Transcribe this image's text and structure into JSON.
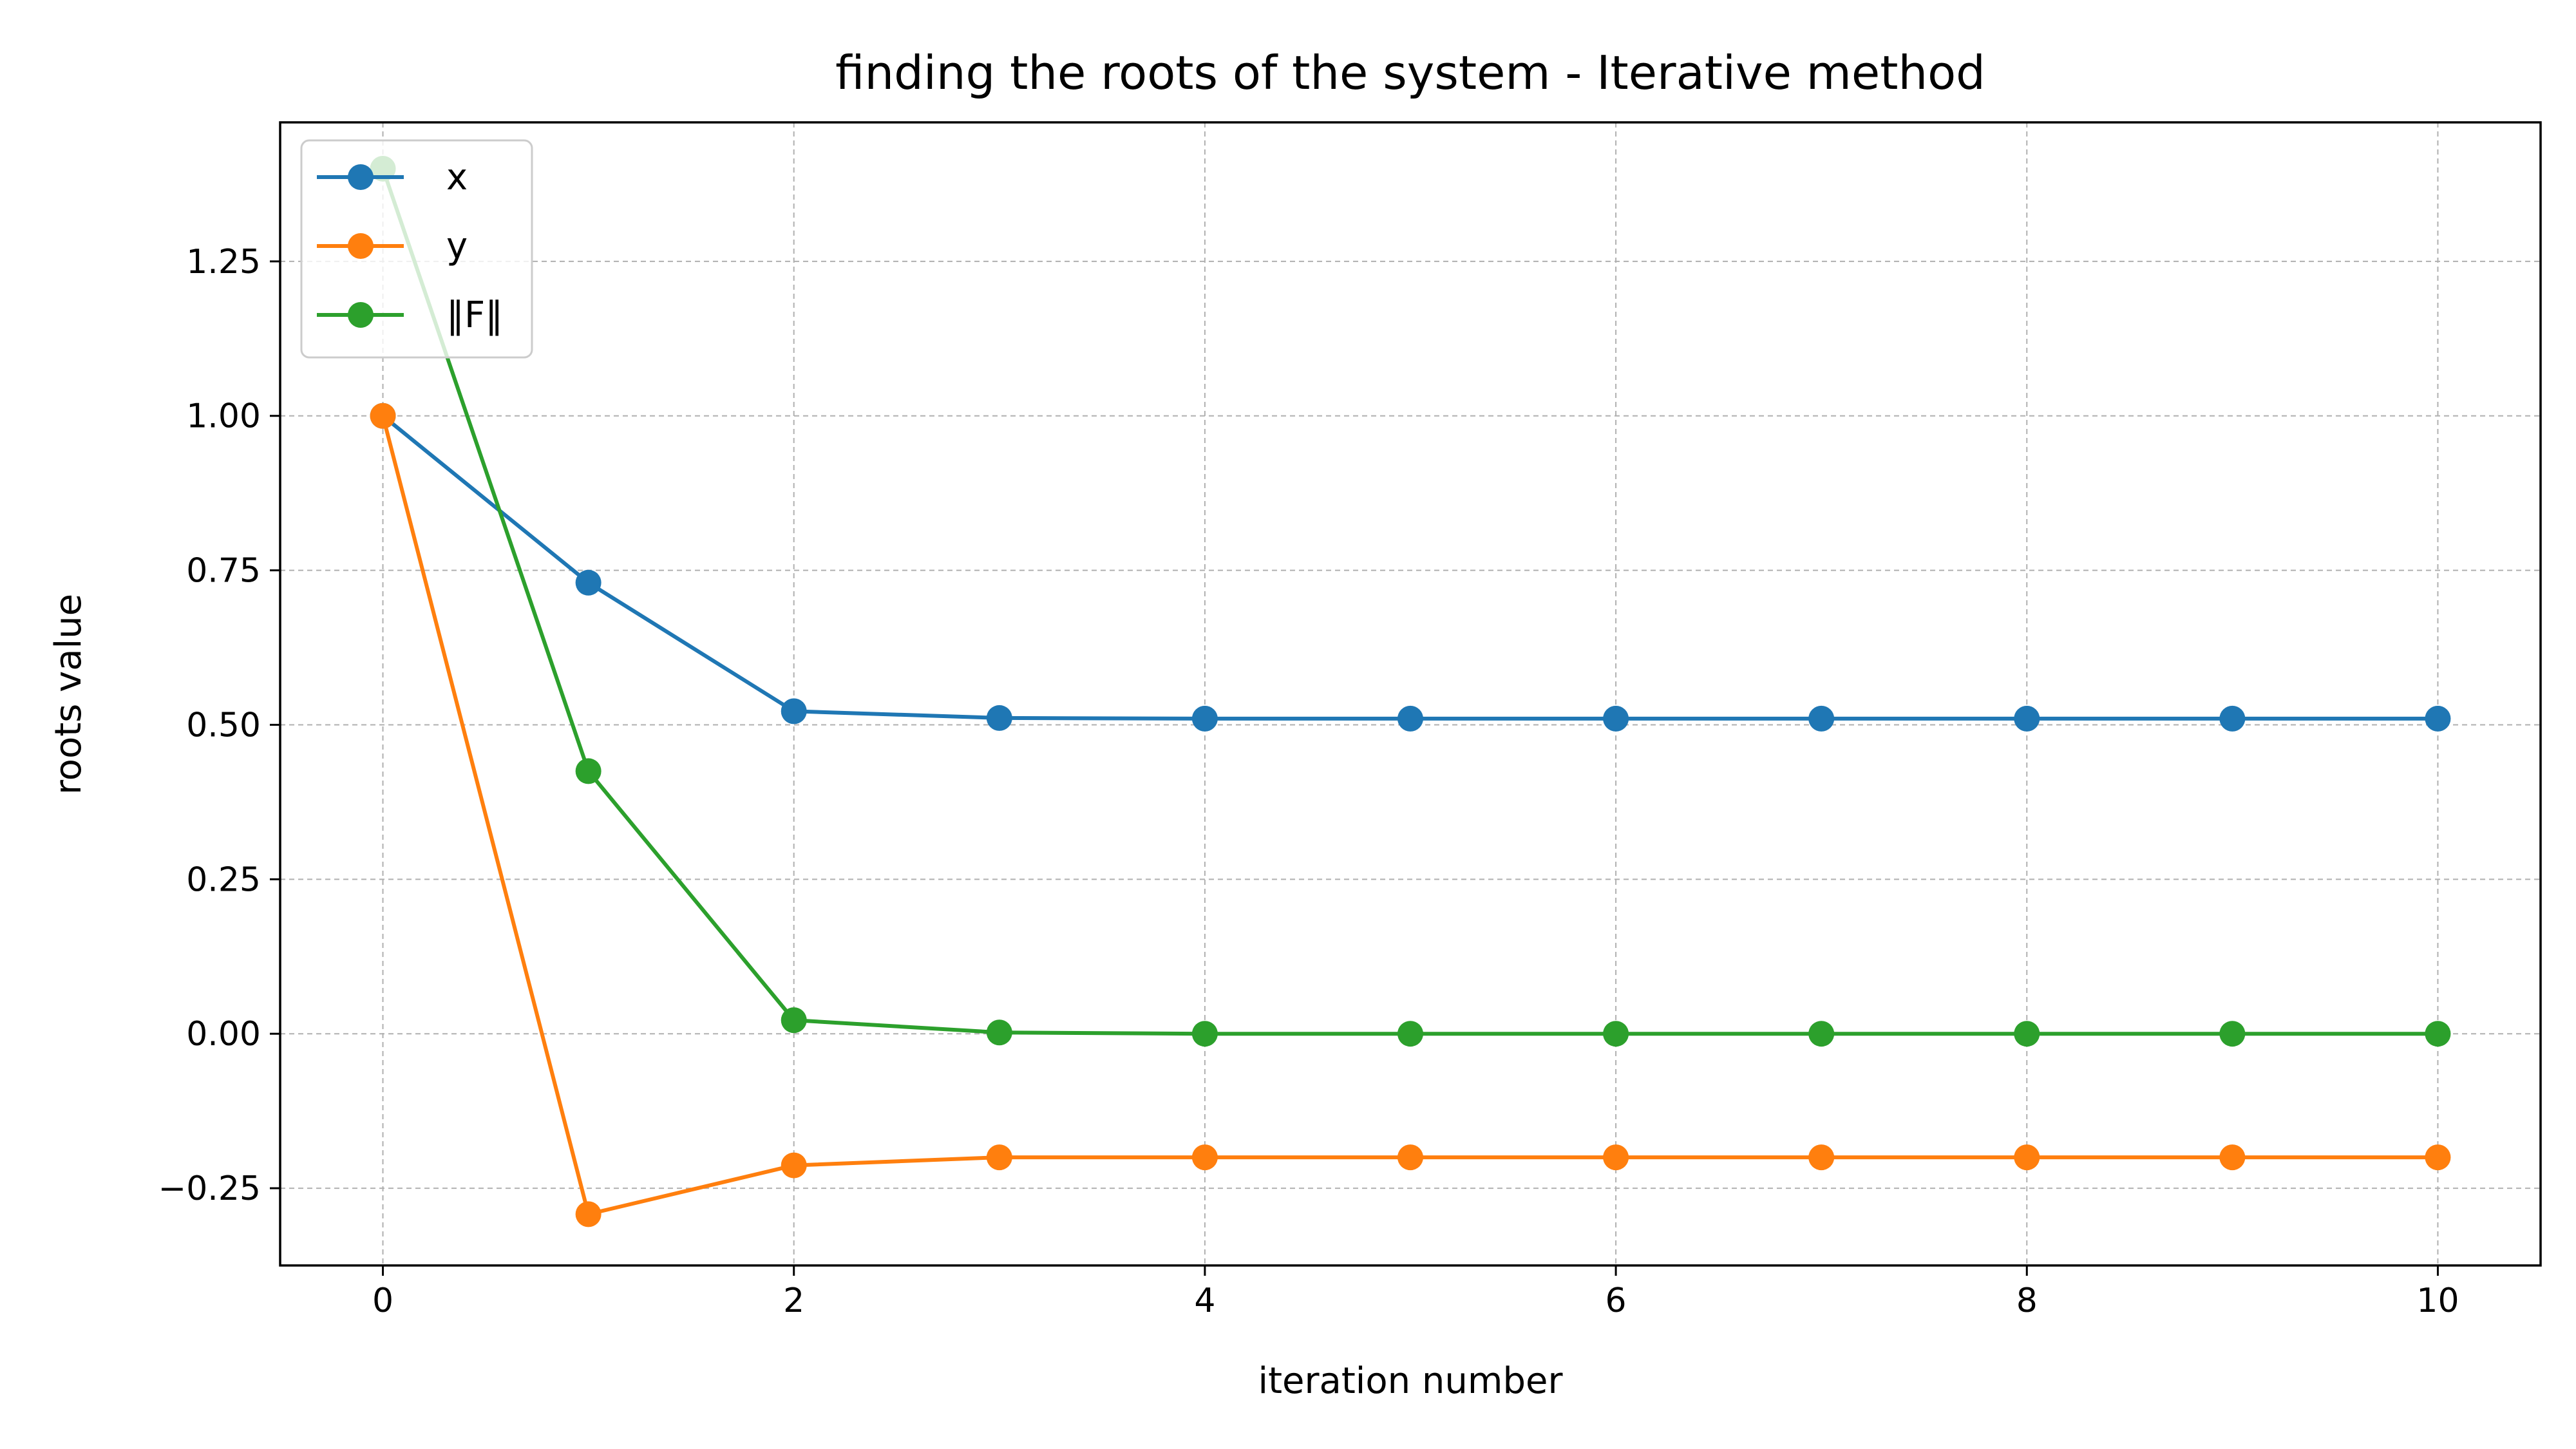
{
  "chart_data": {
    "type": "line",
    "title": "finding the roots of the system - Iterative method",
    "xlabel": "iteration number",
    "ylabel": "roots value",
    "xlim": [
      -0.5,
      10.5
    ],
    "ylim": [
      -0.375,
      1.475
    ],
    "x": [
      0,
      1,
      2,
      3,
      4,
      5,
      6,
      7,
      8,
      9,
      10
    ],
    "xticks": [
      0,
      2,
      4,
      6,
      8,
      10
    ],
    "xtick_labels": [
      "0",
      "2",
      "4",
      "6",
      "8",
      "10"
    ],
    "yticks": [
      -0.25,
      0.0,
      0.25,
      0.5,
      0.75,
      1.0,
      1.25
    ],
    "ytick_labels": [
      "−0.25",
      "0.00",
      "0.25",
      "0.50",
      "0.75",
      "1.00",
      "1.25"
    ],
    "grid": true,
    "legend_position": "top-left",
    "series": [
      {
        "name": "x",
        "color": "#1f77b4",
        "values": [
          1.0,
          0.73,
          0.522,
          0.511,
          0.51,
          0.51,
          0.51,
          0.51,
          0.51,
          0.51,
          0.51
        ]
      },
      {
        "name": "y",
        "color": "#ff7f0e",
        "values": [
          1.0,
          -0.292,
          -0.213,
          -0.2,
          -0.2,
          -0.2,
          -0.2,
          -0.2,
          -0.2,
          -0.2,
          -0.2
        ]
      },
      {
        "name": "‖F‖",
        "color": "#2ca02c",
        "values": [
          1.4,
          0.425,
          0.022,
          0.002,
          0.0,
          0.0,
          0.0,
          0.0,
          0.0,
          0.0,
          0.0
        ]
      }
    ]
  }
}
